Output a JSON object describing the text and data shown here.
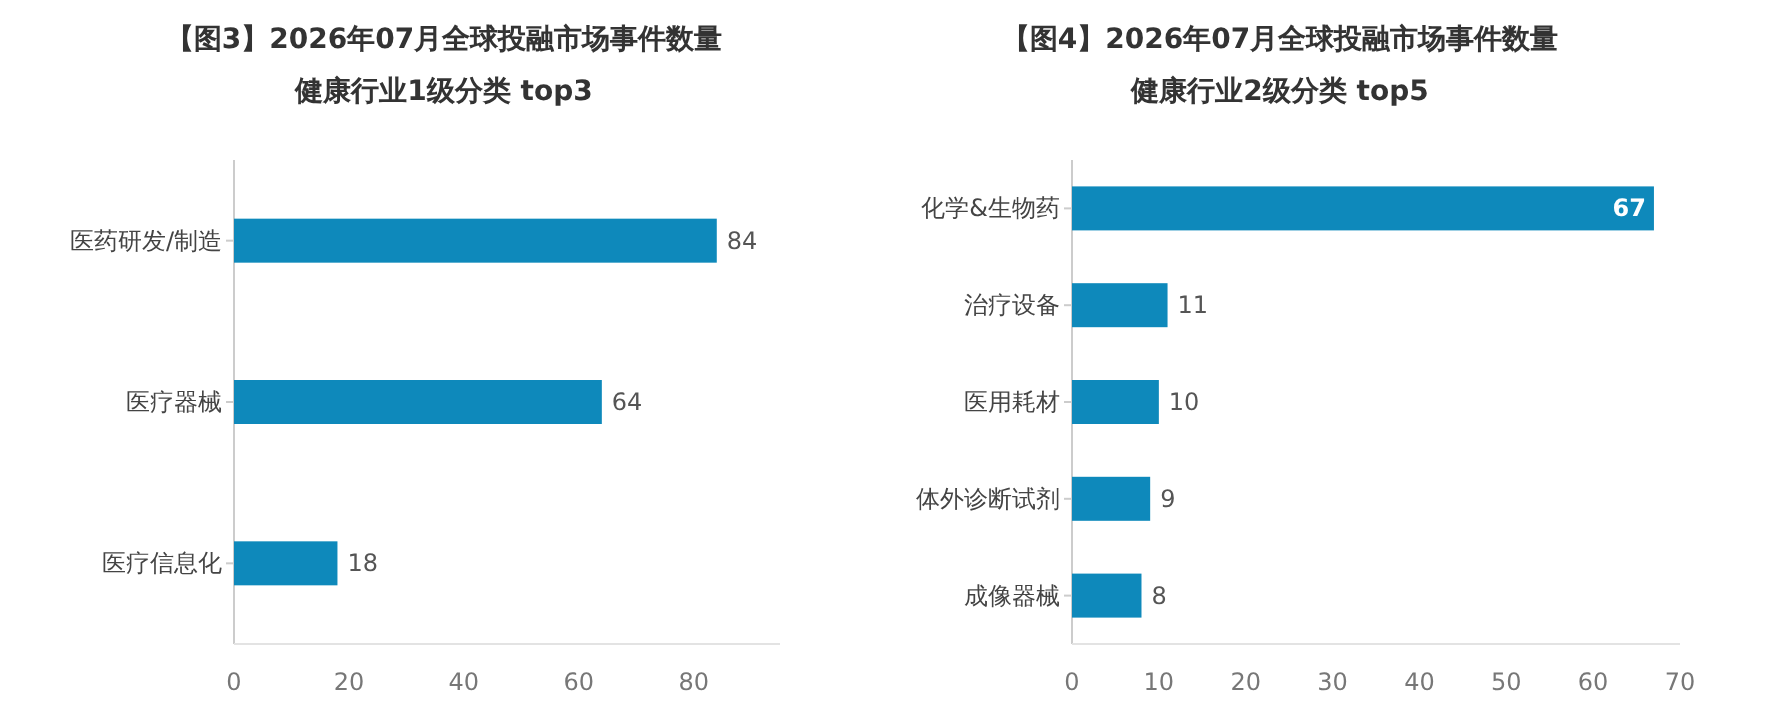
{
  "chart_data": [
    {
      "type": "bar",
      "orientation": "horizontal",
      "title": "【图3】2026年07月全球投融市场事件数量",
      "subtitle": "健康行业1级分类 top3",
      "categories": [
        "医药研发/制造",
        "医疗器械",
        "医疗信息化"
      ],
      "values": [
        84,
        64,
        18
      ],
      "color": "#0e89bb",
      "xlim": [
        0,
        95
      ],
      "xticks": [
        0,
        20,
        40,
        60,
        80
      ],
      "data_labels": true,
      "grid": false
    },
    {
      "type": "bar",
      "orientation": "horizontal",
      "title": "【图4】2026年07月全球投融市场事件数量",
      "subtitle": "健康行业2级分类 top5",
      "categories": [
        "化学&生物药",
        "治疗设备",
        "医用耗材",
        "体外诊断试剂",
        "成像器械"
      ],
      "values": [
        67,
        11,
        10,
        9,
        8
      ],
      "color": "#0e89bb",
      "xlim": [
        0,
        70
      ],
      "xticks": [
        0,
        10,
        20,
        30,
        40,
        50,
        60,
        70
      ],
      "data_labels": true,
      "grid": false
    }
  ]
}
